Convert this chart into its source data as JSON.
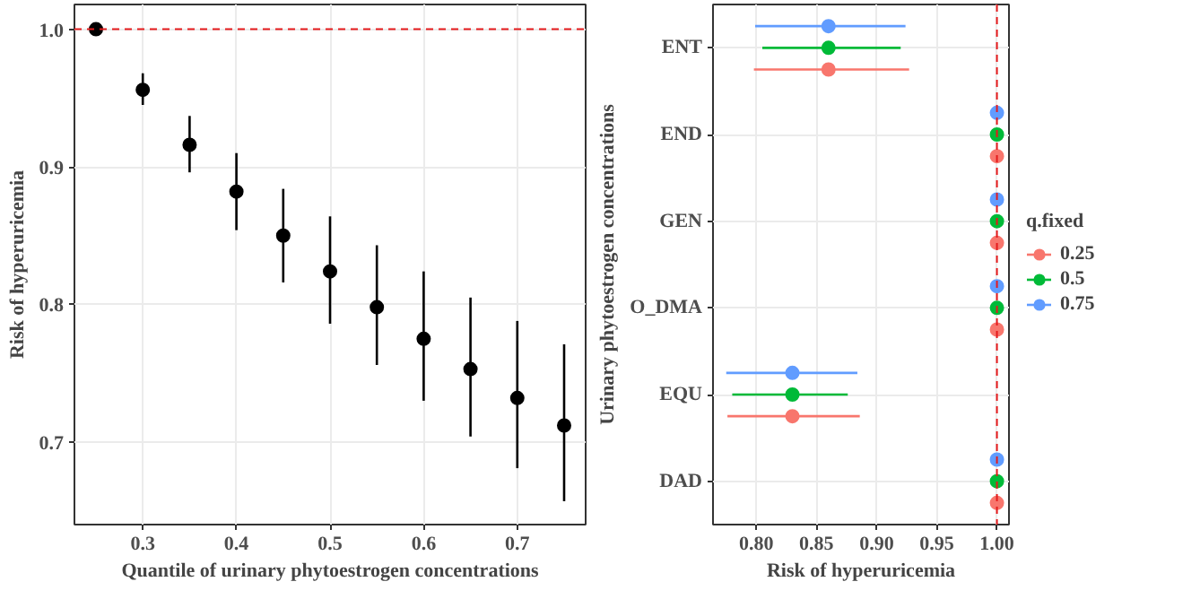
{
  "chart_data": [
    {
      "type": "scatter",
      "xlabel": "Quantile of urinary phytoestrogen concentrations",
      "ylabel": "Risk of hyperuricemia",
      "x": [
        0.25,
        0.3,
        0.35,
        0.4,
        0.45,
        0.5,
        0.55,
        0.6,
        0.65,
        0.7,
        0.75
      ],
      "series": [
        {
          "color": "#000000",
          "values": [
            1.0,
            0.956,
            0.916,
            0.882,
            0.85,
            0.824,
            0.798,
            0.775,
            0.753,
            0.732,
            0.712
          ],
          "errors": [
            null,
            [
              0.945,
              0.968
            ],
            [
              0.896,
              0.937
            ],
            [
              0.854,
              0.91
            ],
            [
              0.816,
              0.884
            ],
            [
              0.786,
              0.864
            ],
            [
              0.756,
              0.843
            ],
            [
              0.73,
              0.824
            ],
            [
              0.704,
              0.805
            ],
            [
              0.681,
              0.788
            ],
            [
              0.657,
              0.771
            ]
          ]
        }
      ],
      "xlim": [
        0.227,
        0.773
      ],
      "ylim": [
        0.64,
        1.018
      ],
      "xticks": [
        0.3,
        0.4,
        0.5,
        0.6,
        0.7
      ],
      "yticks": [
        0.7,
        0.8,
        0.9,
        {
          "value": 1.0,
          "label": "1.0"
        }
      ],
      "ref_lines": [
        {
          "axis": "y",
          "value": 1.0,
          "color": "#e41a1c",
          "line_style": "dashed"
        }
      ],
      "grid": true,
      "marker": "circle",
      "legend": false
    },
    {
      "type": "scatter",
      "orientation": "horizontal",
      "xlabel": "Risk of hyperuricemia",
      "ylabel": "Urinary phytoestrogen concentrations",
      "legend_title": "q.fixed",
      "categories": [
        "ENT",
        "END",
        "GEN",
        "O_DMA",
        "EQU",
        "DAD"
      ],
      "series": [
        {
          "name": "0.25",
          "color": "#f8766d",
          "values": [
            0.86,
            1.0,
            1.0,
            1.0,
            0.83,
            1.0
          ],
          "errors": [
            [
              0.798,
              0.927
            ],
            null,
            null,
            null,
            [
              0.776,
              0.886
            ],
            null
          ]
        },
        {
          "name": "0.5",
          "color": "#00ba38",
          "values": [
            0.86,
            1.0,
            1.0,
            1.0,
            0.83,
            1.0
          ],
          "errors": [
            [
              0.805,
              0.92
            ],
            null,
            null,
            null,
            [
              0.78,
              0.876
            ],
            null
          ]
        },
        {
          "name": "0.75",
          "color": "#619cff",
          "values": [
            0.86,
            1.0,
            1.0,
            1.0,
            0.83,
            1.0
          ],
          "errors": [
            [
              0.799,
              0.924
            ],
            null,
            null,
            null,
            [
              0.775,
              0.884
            ],
            null
          ]
        }
      ],
      "xlim": [
        0.764,
        1.01
      ],
      "xticks": [
        {
          "value": 0.8,
          "label": "0.80"
        },
        {
          "value": 0.85,
          "label": "0.85"
        },
        {
          "value": 0.9,
          "label": "0.90"
        },
        {
          "value": 0.95,
          "label": "0.95"
        },
        {
          "value": 1.0,
          "label": "1.00"
        }
      ],
      "ref_lines": [
        {
          "axis": "x",
          "value": 1.0,
          "color": "#e41a1c",
          "line_style": "dashed"
        }
      ],
      "grid": true,
      "marker": "circle",
      "legend": "right"
    }
  ]
}
